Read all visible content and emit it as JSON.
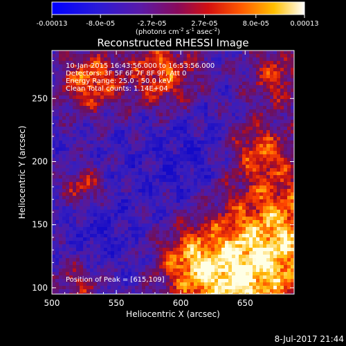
{
  "colorbar": {
    "ticks": [
      "-0.00013",
      "-8.0e-05",
      "-2.7e-05",
      "2.7e-05",
      "8.0e-05",
      "0.00013"
    ],
    "tick_values": [
      -0.00013,
      -8e-05,
      -2.7e-05,
      2.7e-05,
      8e-05,
      0.00013
    ],
    "range": [
      -0.00013,
      0.00013
    ],
    "unit_text": "(photons cm",
    "unit_sup1": "-2",
    "unit_mid": " s",
    "unit_sup2": "-1",
    "unit_end": " asec",
    "unit_sup3": "-2",
    "unit_close": ")"
  },
  "chart_data": {
    "type": "heatmap",
    "title": "Reconstructed RHESSI Image",
    "xlabel": "Heliocentric X (arcsec)",
    "ylabel": "Heliocentric Y (arcsec)",
    "xlim": [
      500,
      688
    ],
    "ylim": [
      95,
      288
    ],
    "xticks": [
      "500",
      "550",
      "600",
      "650"
    ],
    "yticks": [
      "100",
      "150",
      "200",
      "250"
    ],
    "xtick_values": [
      500,
      550,
      600,
      650
    ],
    "ytick_values": [
      100,
      150,
      200,
      250
    ],
    "colormap": "rainbow-blue-purple-red-yellow-white",
    "annotations": [
      "10-Jan-2015 16:43:56.000 to 16:53:56.000",
      "Detectors: 3F 5F 6F 7F 8F 9F, Att 0",
      "Energy Range: 25.0 - 50.0 keV",
      "Clean    Total counts: 1.14E+04"
    ],
    "peak_label": "Position of Peak = [615,109]",
    "peak": [
      615,
      109
    ]
  },
  "footer": {
    "timestamp": "8-Jul-2017 21:44"
  }
}
